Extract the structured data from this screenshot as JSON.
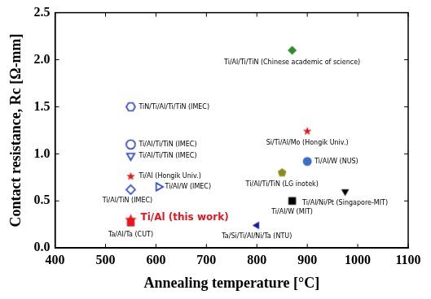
{
  "chart_data": {
    "type": "scatter",
    "x_label": "Annealing temperature [°C]",
    "y_label": "Contact resistance, Rc [Ω-mm]",
    "xlim": [
      400,
      1100
    ],
    "xticks": [
      400,
      500,
      600,
      700,
      800,
      900,
      1000,
      1100
    ],
    "ylim": [
      0,
      2.5
    ],
    "yticks": [
      {
        "value": 0,
        "label": "0.0"
      },
      0.5,
      {
        "value": 1,
        "label": "1.0"
      },
      1.5,
      {
        "value": 2,
        "label": "2.0"
      },
      2.5
    ],
    "grid": false,
    "series": [
      {
        "name": "TiN/Ti/Al/Ti/TiN (IMEC)",
        "color": "#1f3fbf",
        "marker": "open-hexagon",
        "x": [
          550
        ],
        "values": [
          1.5
        ]
      },
      {
        "name": "Ti/Al/Ti/TiN (IMEC)",
        "color": "#1f3fbf",
        "marker": "open-circle",
        "x": [
          550
        ],
        "values": [
          1.1
        ]
      },
      {
        "name": "Ti/Al/Ti/TiN (IMEC)",
        "color": "#1f3fbf",
        "marker": "open-triangle-down",
        "x": [
          550
        ],
        "values": [
          0.98
        ]
      },
      {
        "name": "Ti/Al (Hongik Univ.)",
        "color": "#e8141e",
        "marker": "star",
        "x": [
          550
        ],
        "values": [
          0.76
        ]
      },
      {
        "name": "Ti/Al/TiN (IMEC)",
        "color": "#1f3fbf",
        "marker": "open-diamond",
        "x": [
          550
        ],
        "values": [
          0.62
        ]
      },
      {
        "name": "Ti/Al/W (IMEC)",
        "color": "#1f3fbf",
        "marker": "open-triangle-right",
        "x": [
          605
        ],
        "values": [
          0.65
        ]
      },
      {
        "name": "Ta/Al/Ta (CUT)",
        "color": "#e8141e",
        "marker": "square",
        "x": [
          550
        ],
        "values": [
          0.27
        ]
      },
      {
        "name": "Ti/Al (this work)",
        "color": "#e8141e",
        "marker": "star",
        "x": [
          550
        ],
        "values": [
          0.3
        ]
      },
      {
        "name": "Ti/Al/Ti/TiN (Chinese academic of science)",
        "color": "#2e8b2e",
        "marker": "diamond",
        "x": [
          870
        ],
        "values": [
          2.1
        ]
      },
      {
        "name": "Si/Ti/Al/Mo (Hongik Univ.)",
        "color": "#e8141e",
        "marker": "star",
        "x": [
          900
        ],
        "values": [
          1.24
        ]
      },
      {
        "name": "Ti/Al/W (NUS)",
        "color": "#3a6fc4",
        "marker": "circle",
        "x": [
          900
        ],
        "values": [
          0.92
        ]
      },
      {
        "name": "Ti/Al/Ti/TiN (LG inotek)",
        "color": "#8b8b1a",
        "marker": "pentagon",
        "x": [
          850
        ],
        "values": [
          0.8
        ]
      },
      {
        "name": "Ti/Al/W (MIT)",
        "color": "#000000",
        "marker": "square",
        "x": [
          870
        ],
        "values": [
          0.5
        ]
      },
      {
        "name": "Ti/Al/Ni/Pt (Singapore-MIT)",
        "color": "#000000",
        "marker": "triangle-down",
        "x": [
          975
        ],
        "values": [
          0.6
        ]
      },
      {
        "name": "Ta/Si/Ti/Al/Ni/Ta (NTU)",
        "color": "#1a1a9e",
        "marker": "triangle-left",
        "x": [
          800
        ],
        "values": [
          0.24
        ]
      }
    ]
  }
}
